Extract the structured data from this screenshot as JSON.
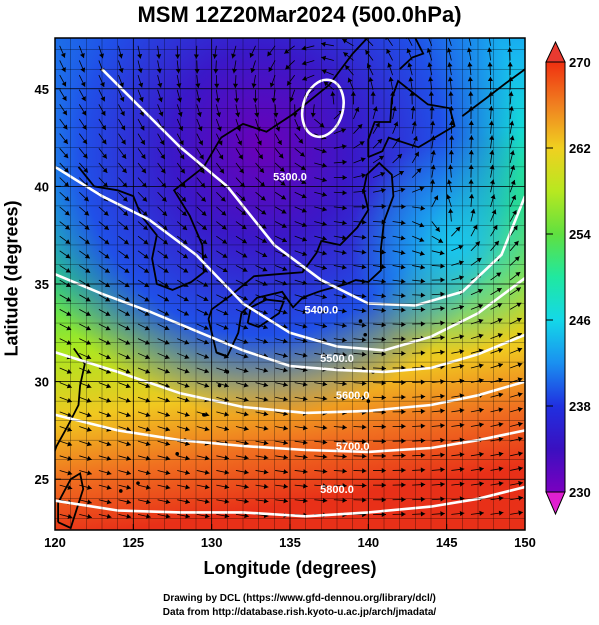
{
  "title": "MSM 12Z20Mar2024 (500.0hPa)",
  "x_axis": {
    "label": "Longitude (degrees)",
    "range": [
      120,
      150
    ],
    "ticks": [
      "120",
      "125",
      "130",
      "135",
      "140",
      "145",
      "150"
    ]
  },
  "y_axis": {
    "label": "Latitude  (degrees)",
    "range": [
      22.4,
      47.6
    ],
    "ticks": [
      "25",
      "30",
      "35",
      "40",
      "45"
    ]
  },
  "colorbar": {
    "range": [
      230,
      270
    ],
    "tick_labels": [
      "270",
      "262",
      "254",
      "246",
      "238",
      "230"
    ],
    "colors": [
      "#d200c8",
      "#7a00c0",
      "#3a10c0",
      "#2030e0",
      "#1a90f0",
      "#14d8e8",
      "#20e8a0",
      "#60e040",
      "#b8e820",
      "#f0d020",
      "#f08020",
      "#f03010"
    ]
  },
  "contour_labels": [
    "5300.0",
    "5400.0",
    "5500.0",
    "5600.0",
    "5700.0",
    "5800.0"
  ],
  "credits": {
    "line1": "Drawing by DCL (https://www.gfd-dennou.org/library/dcl/)",
    "line2": "Data from http://database.rish.kyoto-u.ac.jp/arch/jmadata/"
  }
}
